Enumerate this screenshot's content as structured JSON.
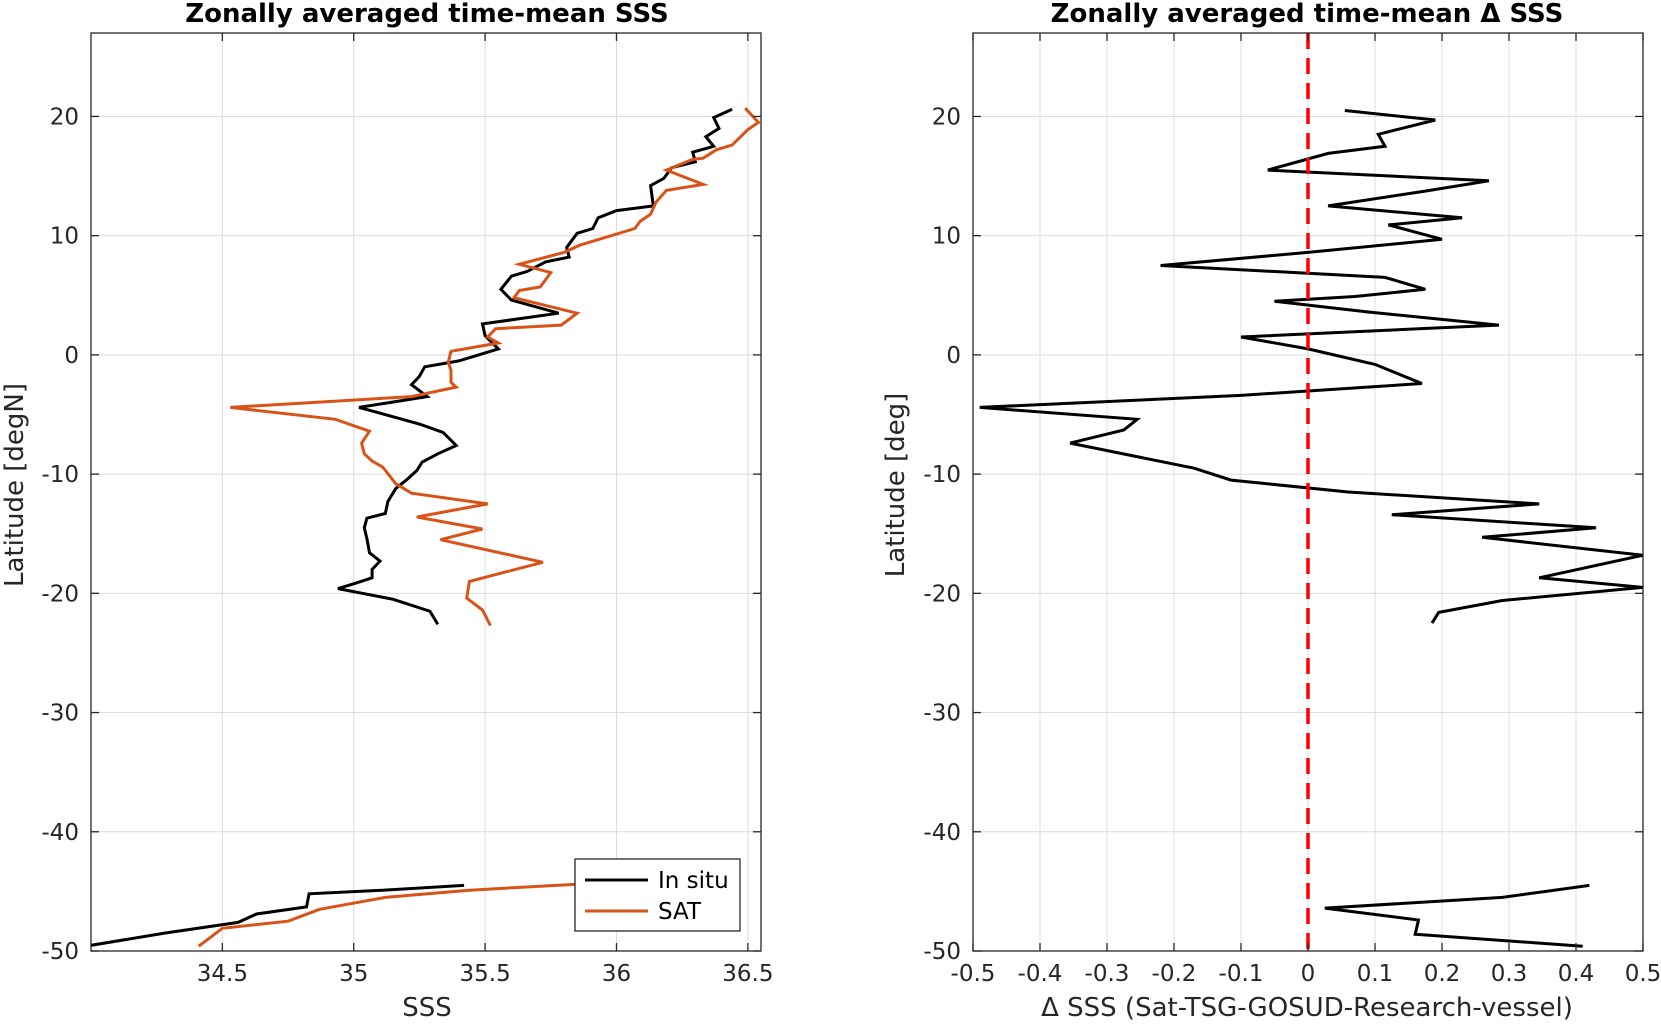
{
  "chart_data": [
    {
      "type": "line",
      "title": "Zonally averaged time-mean SSS",
      "xlabel": "SSS",
      "ylabel": "Latitude [degN]",
      "xlim": [
        34.0,
        36.55
      ],
      "ylim": [
        -50,
        27
      ],
      "xticks": [
        34.5,
        35,
        35.5,
        36,
        36.5
      ],
      "xtick_labels": [
        "34.5",
        "35",
        "35.5",
        "36",
        "36.5"
      ],
      "yticks": [
        -50,
        -40,
        -30,
        -20,
        -10,
        0,
        10,
        20
      ],
      "ytick_labels": [
        "-50",
        "-40",
        "-30",
        "-20",
        "-10",
        "0",
        "10",
        "20"
      ],
      "grid": true,
      "legend_position": "bottom-right",
      "series": [
        {
          "name": "In situ",
          "color": "#000000",
          "segments": [
            [
              [
                36.44,
                20.6
              ],
              [
                36.37,
                19.9
              ],
              [
                36.39,
                19.0
              ],
              [
                36.34,
                18.3
              ],
              [
                36.37,
                17.5
              ],
              [
                36.29,
                17.0
              ],
              [
                36.3,
                16.2
              ],
              [
                36.21,
                15.7
              ],
              [
                36.18,
                14.8
              ],
              [
                36.13,
                14.2
              ],
              [
                36.14,
                12.5
              ],
              [
                36.0,
                12.1
              ],
              [
                35.93,
                11.5
              ],
              [
                35.91,
                10.6
              ],
              [
                35.85,
                10.2
              ],
              [
                35.81,
                9.0
              ],
              [
                35.82,
                8.2
              ],
              [
                35.73,
                7.8
              ],
              [
                35.66,
                7.0
              ],
              [
                35.6,
                6.6
              ],
              [
                35.56,
                5.5
              ],
              [
                35.6,
                4.6
              ],
              [
                35.78,
                3.5
              ],
              [
                35.49,
                2.6
              ],
              [
                35.5,
                1.6
              ],
              [
                35.55,
                0.5
              ],
              [
                35.4,
                -0.5
              ],
              [
                35.27,
                -1.0
              ],
              [
                35.25,
                -1.8
              ],
              [
                35.22,
                -2.5
              ],
              [
                35.28,
                -3.5
              ],
              [
                35.02,
                -4.4
              ],
              [
                35.25,
                -5.8
              ],
              [
                35.34,
                -6.5
              ],
              [
                35.39,
                -7.6
              ],
              [
                35.32,
                -8.3
              ],
              [
                35.26,
                -9.0
              ],
              [
                35.24,
                -9.7
              ],
              [
                35.2,
                -10.5
              ],
              [
                35.16,
                -11.2
              ],
              [
                35.13,
                -12.3
              ],
              [
                35.12,
                -13.3
              ],
              [
                35.05,
                -13.7
              ],
              [
                35.04,
                -14.5
              ],
              [
                35.05,
                -15.4
              ],
              [
                35.06,
                -16.6
              ],
              [
                35.1,
                -17.3
              ],
              [
                35.07,
                -18.0
              ],
              [
                35.07,
                -18.7
              ],
              [
                35.0,
                -19.2
              ],
              [
                34.94,
                -19.6
              ],
              [
                35.15,
                -20.5
              ],
              [
                35.29,
                -21.5
              ],
              [
                35.32,
                -22.6
              ]
            ],
            [
              [
                35.42,
                -44.5
              ],
              [
                35.11,
                -44.9
              ],
              [
                34.83,
                -45.2
              ],
              [
                34.82,
                -46.3
              ],
              [
                34.63,
                -46.9
              ],
              [
                34.56,
                -47.6
              ],
              [
                34.28,
                -48.5
              ],
              [
                33.98,
                -49.6
              ]
            ]
          ]
        },
        {
          "name": "SAT",
          "color": "#d95319",
          "segments": [
            [
              [
                36.49,
                20.7
              ],
              [
                36.54,
                19.5
              ],
              [
                36.5,
                18.9
              ],
              [
                36.44,
                17.6
              ],
              [
                36.38,
                17.2
              ],
              [
                36.33,
                16.5
              ],
              [
                36.29,
                16.4
              ],
              [
                36.19,
                15.5
              ],
              [
                36.33,
                14.3
              ],
              [
                36.19,
                13.8
              ],
              [
                36.15,
                12.8
              ],
              [
                36.13,
                11.8
              ],
              [
                36.09,
                11.2
              ],
              [
                36.07,
                10.6
              ],
              [
                35.86,
                9.2
              ],
              [
                35.8,
                8.6
              ],
              [
                35.63,
                7.6
              ],
              [
                35.75,
                6.9
              ],
              [
                35.71,
                5.7
              ],
              [
                35.63,
                5.4
              ],
              [
                35.61,
                4.8
              ],
              [
                35.85,
                3.5
              ],
              [
                35.79,
                2.5
              ],
              [
                35.54,
                2.2
              ],
              [
                35.51,
                1.5
              ],
              [
                35.55,
                1.0
              ],
              [
                35.37,
                0.3
              ],
              [
                35.36,
                -0.6
              ],
              [
                35.37,
                -1.3
              ],
              [
                35.37,
                -2.3
              ],
              [
                35.39,
                -2.7
              ],
              [
                35.22,
                -3.5
              ],
              [
                34.53,
                -4.4
              ],
              [
                34.93,
                -5.4
              ],
              [
                35.06,
                -6.4
              ],
              [
                35.03,
                -7.4
              ],
              [
                35.04,
                -8.3
              ],
              [
                35.07,
                -8.9
              ],
              [
                35.11,
                -9.4
              ],
              [
                35.16,
                -10.8
              ],
              [
                35.22,
                -11.6
              ],
              [
                35.51,
                -12.5
              ],
              [
                35.24,
                -13.6
              ],
              [
                35.49,
                -14.6
              ],
              [
                35.33,
                -15.5
              ],
              [
                35.72,
                -17.4
              ],
              [
                35.44,
                -19.0
              ],
              [
                35.43,
                -20.4
              ],
              [
                35.49,
                -21.4
              ],
              [
                35.52,
                -22.7
              ]
            ],
            [
              [
                35.85,
                -44.4
              ],
              [
                35.44,
                -44.9
              ],
              [
                35.12,
                -45.5
              ],
              [
                34.87,
                -46.5
              ],
              [
                34.75,
                -47.5
              ],
              [
                34.5,
                -48.1
              ],
              [
                34.41,
                -49.6
              ]
            ]
          ]
        }
      ]
    },
    {
      "type": "line",
      "title": "Zonally averaged time-mean Δ SSS",
      "xlabel": "Δ SSS (Sat-TSG-GOSUD-Research-vessel)",
      "ylabel": "Latitude [deg]",
      "xlim": [
        -0.5,
        0.5
      ],
      "ylim": [
        -50,
        27
      ],
      "xticks": [
        -0.5,
        -0.4,
        -0.3,
        -0.2,
        -0.1,
        0,
        0.1,
        0.2,
        0.3,
        0.4,
        0.5
      ],
      "xtick_labels": [
        "-0.5",
        "-0.4",
        "-0.3",
        "-0.2",
        "-0.1",
        "0",
        "0.1",
        "0.2",
        "0.3",
        "0.4",
        "0.5"
      ],
      "yticks": [
        -50,
        -40,
        -30,
        -20,
        -10,
        0,
        10,
        20
      ],
      "ytick_labels": [
        "-50",
        "-40",
        "-30",
        "-20",
        "-10",
        "0",
        "10",
        "20"
      ],
      "grid": true,
      "reference_line": {
        "x": 0,
        "color": "#ff0000",
        "style": "dashed"
      },
      "series": [
        {
          "color": "#000000",
          "segments": [
            [
              [
                0.055,
                20.5
              ],
              [
                0.19,
                19.7
              ],
              [
                0.105,
                18.5
              ],
              [
                0.115,
                17.5
              ],
              [
                0.03,
                16.9
              ],
              [
                -0.06,
                15.5
              ],
              [
                0.27,
                14.6
              ],
              [
                0.17,
                13.7
              ],
              [
                0.03,
                12.5
              ],
              [
                0.23,
                11.5
              ],
              [
                0.12,
                10.9
              ],
              [
                0.2,
                9.7
              ],
              [
                0.0,
                8.6
              ],
              [
                -0.22,
                7.5
              ],
              [
                0.115,
                6.5
              ],
              [
                0.175,
                5.5
              ],
              [
                0.07,
                4.9
              ],
              [
                -0.05,
                4.5
              ],
              [
                0.09,
                3.6
              ],
              [
                0.285,
                2.5
              ],
              [
                -0.1,
                1.5
              ],
              [
                0.0,
                0.5
              ],
              [
                0.1,
                -0.8
              ],
              [
                0.17,
                -2.4
              ],
              [
                -0.1,
                -3.4
              ],
              [
                -0.49,
                -4.4
              ],
              [
                -0.255,
                -5.4
              ],
              [
                -0.275,
                -6.3
              ],
              [
                -0.355,
                -7.4
              ],
              [
                -0.17,
                -9.5
              ],
              [
                -0.115,
                -10.5
              ],
              [
                0.06,
                -11.5
              ],
              [
                0.345,
                -12.5
              ],
              [
                0.125,
                -13.4
              ],
              [
                0.43,
                -14.5
              ],
              [
                0.26,
                -15.3
              ],
              [
                0.5,
                -16.8
              ],
              [
                0.345,
                -18.7
              ],
              [
                0.5,
                -19.5
              ],
              [
                0.29,
                -20.6
              ],
              [
                0.195,
                -21.6
              ],
              [
                0.185,
                -22.5
              ]
            ],
            [
              [
                0.42,
                -44.5
              ],
              [
                0.29,
                -45.5
              ],
              [
                0.025,
                -46.4
              ],
              [
                0.165,
                -47.4
              ],
              [
                0.16,
                -48.6
              ],
              [
                0.41,
                -49.6
              ]
            ]
          ]
        }
      ]
    }
  ]
}
